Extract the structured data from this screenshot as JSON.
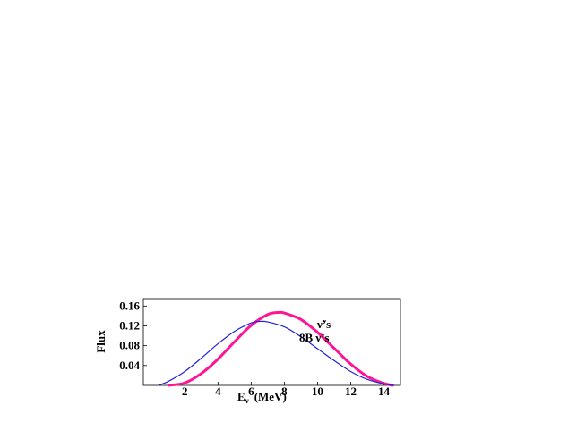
{
  "chart_data": {
    "type": "line",
    "xlabel": "E",
    "xlabel_subscript": "ν",
    "xlabel_unit": "(MeV)",
    "ylabel": "Flux",
    "xlim": [
      -0.5,
      15
    ],
    "ylim": [
      0,
      0.175
    ],
    "xticks": [
      "2",
      "4",
      "6",
      "8",
      "10",
      "12",
      "14"
    ],
    "yticks": [
      "0.04",
      "0.08",
      "0.12",
      "0.16"
    ],
    "annotations": [
      "ν̃’s",
      "8B  ν’s"
    ],
    "grid": false,
    "series": [
      {
        "color": "#ff1493",
        "x": [
          1.0,
          2.0,
          3.0,
          4.0,
          5.0,
          6.0,
          7.0,
          7.6,
          8.0,
          9.0,
          10.0,
          11.0,
          12.0,
          13.0,
          14.0,
          14.6
        ],
        "y": [
          0.0,
          0.005,
          0.024,
          0.053,
          0.088,
          0.121,
          0.143,
          0.147,
          0.146,
          0.133,
          0.107,
          0.075,
          0.043,
          0.018,
          0.004,
          0.0
        ]
      },
      {
        "color": "#2020e0",
        "x": [
          0.4,
          1.0,
          2.0,
          3.0,
          4.0,
          5.0,
          6.0,
          6.5,
          7.0,
          8.0,
          9.0,
          10.0,
          11.0,
          12.0,
          13.0,
          14.0,
          14.6
        ],
        "y": [
          0.0,
          0.008,
          0.028,
          0.055,
          0.084,
          0.109,
          0.126,
          0.129,
          0.128,
          0.118,
          0.098,
          0.074,
          0.05,
          0.028,
          0.012,
          0.003,
          0.0
        ]
      }
    ]
  }
}
